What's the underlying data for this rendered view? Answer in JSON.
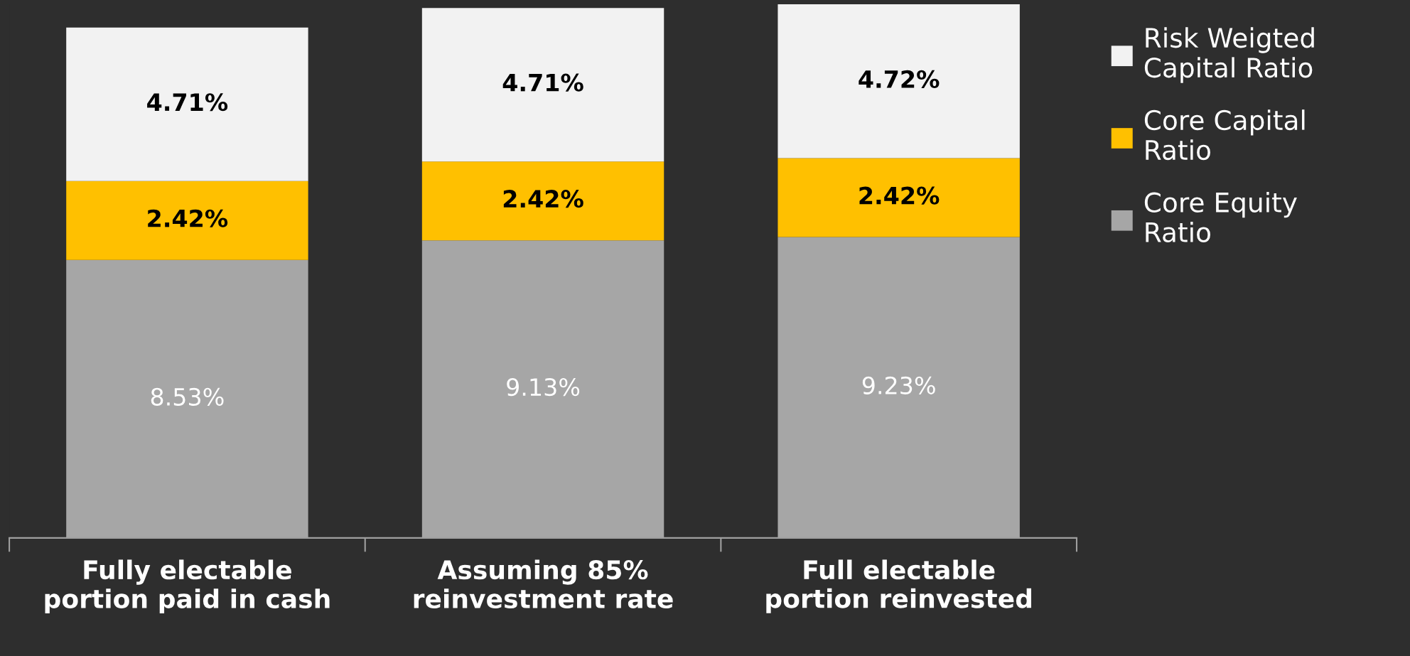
{
  "chart_data": {
    "type": "bar",
    "stacked": true,
    "legend": "top right",
    "grid": false,
    "categories": [
      "Fully electable\nportion paid in cash",
      "Assuming 85%\nreinvestment rate",
      "Full electable\nportion reinvested"
    ],
    "series": [
      {
        "name": "Core Equity\nRatio",
        "color": "#a6a6a6",
        "values": [
          8.53,
          9.13,
          9.23
        ],
        "value_labels": [
          "8.53%",
          "9.13%",
          "9.23%"
        ]
      },
      {
        "name": "Core Capital\nRatio",
        "color": "#ffc000",
        "values": [
          2.42,
          2.42,
          2.42
        ],
        "value_labels": [
          "2.42%",
          "2.42%",
          "2.42%"
        ]
      },
      {
        "name": "Risk Weigted\nCapital Ratio",
        "color": "#f2f2f2",
        "values": [
          4.71,
          4.71,
          4.72
        ],
        "value_labels": [
          "4.71%",
          "4.71%",
          "4.72%"
        ]
      }
    ]
  }
}
